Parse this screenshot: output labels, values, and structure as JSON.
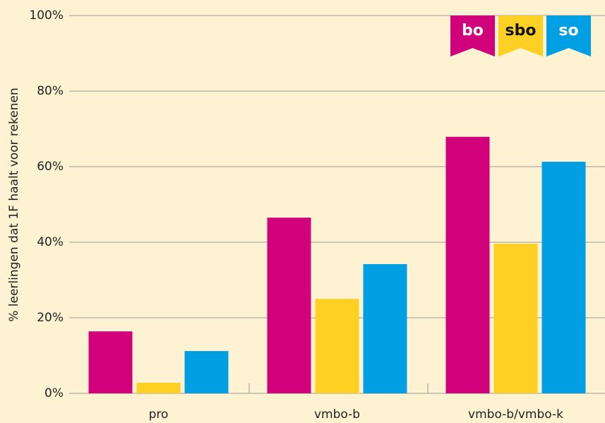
{
  "chart_data": {
    "type": "bar",
    "y_axis_label": "% leerlingen dat 1F haalt voor rekenen",
    "categories": [
      "pro",
      "vmbo-b",
      "vmbo-b/vmbo-k"
    ],
    "series": [
      {
        "name": "bo",
        "color": "#d1007b",
        "values": [
          16.4,
          46.5,
          67.9
        ]
      },
      {
        "name": "sbo",
        "color": "#fdd023",
        "values": [
          2.8,
          25,
          39.6
        ]
      },
      {
        "name": "so",
        "color": "#009fe3",
        "values": [
          11.2,
          34.2,
          61.3
        ]
      }
    ],
    "ylim": [
      0,
      100
    ],
    "yticks": [
      {
        "value": 0,
        "label": "0%"
      },
      {
        "value": 20,
        "label": "20%"
      },
      {
        "value": 40,
        "label": "40%"
      },
      {
        "value": 60,
        "label": "60%"
      },
      {
        "value": 80,
        "label": "80%"
      },
      {
        "value": 100,
        "label": "100%"
      }
    ],
    "grid": true
  }
}
